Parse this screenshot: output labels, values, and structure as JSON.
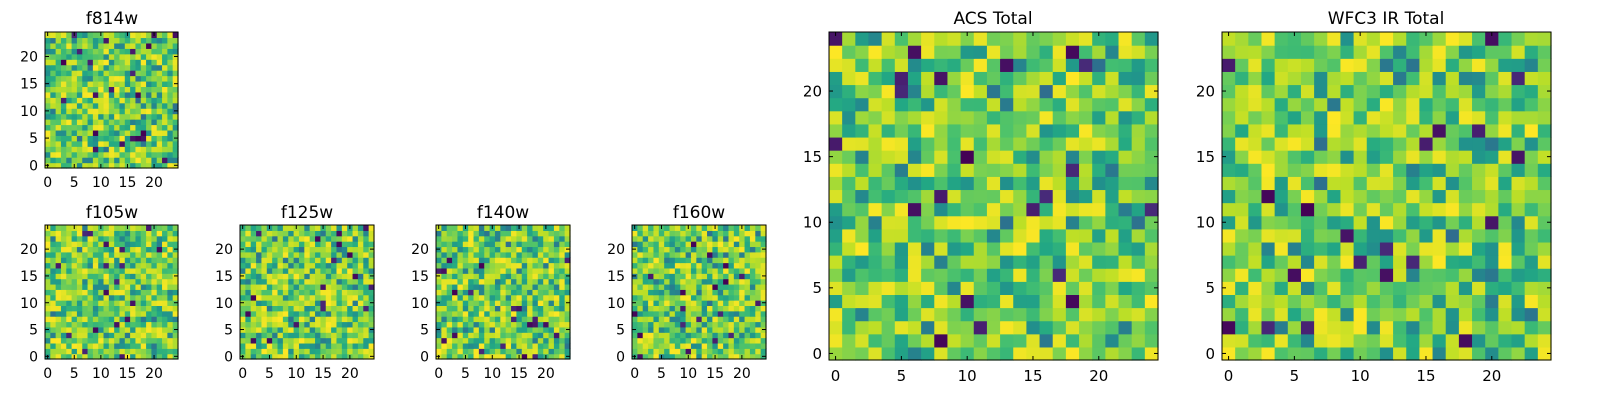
{
  "figure": {
    "panels": [
      {
        "id": "f814w",
        "title": "f814w"
      },
      {
        "id": "f105w",
        "title": "f105w"
      },
      {
        "id": "f125w",
        "title": "f125w"
      },
      {
        "id": "f140w",
        "title": "f140w"
      },
      {
        "id": "f160w",
        "title": "f160w"
      },
      {
        "id": "acs_total",
        "title": "ACS Total"
      },
      {
        "id": "wfc3_ir_total",
        "title": "WFC3 IR Total"
      }
    ]
  },
  "chart_data": [
    {
      "type": "heatmap",
      "title": "f814w",
      "grid_size": 25,
      "colormap": "viridis",
      "xlim": [
        -0.5,
        24.5
      ],
      "ylim": [
        -0.5,
        24.5
      ],
      "xticks": [
        0,
        5,
        10,
        15,
        20
      ],
      "yticks": [
        0,
        5,
        10,
        15,
        20
      ],
      "grid": false
    },
    {
      "type": "heatmap",
      "title": "f105w",
      "grid_size": 25,
      "colormap": "viridis",
      "xlim": [
        -0.5,
        24.5
      ],
      "ylim": [
        -0.5,
        24.5
      ],
      "xticks": [
        0,
        5,
        10,
        15,
        20
      ],
      "yticks": [
        0,
        5,
        10,
        15,
        20
      ],
      "grid": false
    },
    {
      "type": "heatmap",
      "title": "f125w",
      "grid_size": 25,
      "colormap": "viridis",
      "xlim": [
        -0.5,
        24.5
      ],
      "ylim": [
        -0.5,
        24.5
      ],
      "xticks": [
        0,
        5,
        10,
        15,
        20
      ],
      "yticks": [
        0,
        5,
        10,
        15,
        20
      ],
      "grid": false
    },
    {
      "type": "heatmap",
      "title": "f140w",
      "grid_size": 25,
      "colormap": "viridis",
      "xlim": [
        -0.5,
        24.5
      ],
      "ylim": [
        -0.5,
        24.5
      ],
      "xticks": [
        0,
        5,
        10,
        15,
        20
      ],
      "yticks": [
        0,
        5,
        10,
        15,
        20
      ],
      "grid": false
    },
    {
      "type": "heatmap",
      "title": "f160w",
      "grid_size": 25,
      "colormap": "viridis",
      "xlim": [
        -0.5,
        24.5
      ],
      "ylim": [
        -0.5,
        24.5
      ],
      "xticks": [
        0,
        5,
        10,
        15,
        20
      ],
      "yticks": [
        0,
        5,
        10,
        15,
        20
      ],
      "grid": false
    },
    {
      "type": "heatmap",
      "title": "ACS Total",
      "grid_size": 25,
      "colormap": "viridis",
      "xlim": [
        -0.5,
        24.5
      ],
      "ylim": [
        -0.5,
        24.5
      ],
      "xticks": [
        0,
        5,
        10,
        15,
        20
      ],
      "yticks": [
        0,
        5,
        10,
        15,
        20
      ],
      "grid": false
    },
    {
      "type": "heatmap",
      "title": "WFC3 IR Total",
      "grid_size": 25,
      "colormap": "viridis",
      "xlim": [
        -0.5,
        24.5
      ],
      "ylim": [
        -0.5,
        24.5
      ],
      "xticks": [
        0,
        5,
        10,
        15,
        20
      ],
      "yticks": [
        0,
        5,
        10,
        15,
        20
      ],
      "grid": false
    }
  ]
}
